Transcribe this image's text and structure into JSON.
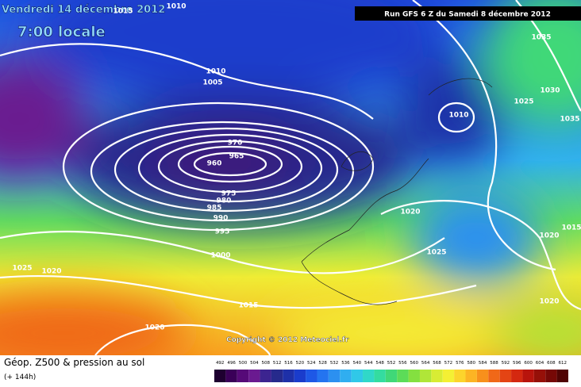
{
  "header": {
    "date": "Vendredi 14 décembre 2012",
    "time": "7:00 locale",
    "run": "Run GFS 6 Z du Samedi 8 décembre 2012"
  },
  "isobar_labels": [
    "1015",
    "1010",
    "1010",
    "1005",
    "970",
    "965",
    "960",
    "975",
    "980",
    "985",
    "990",
    "995",
    "1000",
    "1015",
    "1020",
    "1025",
    "1020",
    "1010",
    "1035",
    "1025",
    "1030",
    "1035",
    "1020",
    "1025",
    "1020",
    "1015",
    "1020"
  ],
  "copyright": "Copyright © 2012 Meteociel.fr",
  "legend": {
    "title": "Géop. Z500 & pression au sol",
    "subtitle": "(+ 144h)",
    "scale": {
      "values": [
        492,
        496,
        500,
        504,
        508,
        512,
        516,
        520,
        524,
        528,
        532,
        536,
        540,
        544,
        548,
        552,
        556,
        560,
        564,
        568,
        572,
        576,
        580,
        584,
        588,
        592,
        596,
        600,
        604,
        608,
        612
      ],
      "colors": [
        "#1e0030",
        "#3a0058",
        "#560a78",
        "#6a1a90",
        "#3c2490",
        "#262a8c",
        "#1e30a8",
        "#1a3ccc",
        "#1e58e6",
        "#2474f0",
        "#2c90f0",
        "#30aef0",
        "#30c8e8",
        "#30d8c8",
        "#34dca0",
        "#40d878",
        "#5cdc58",
        "#84e040",
        "#b0e638",
        "#d8ec34",
        "#f4f034",
        "#fcd42c",
        "#fcb424",
        "#f8901c",
        "#f06818",
        "#e44414",
        "#d42810",
        "#b8140c",
        "#961008",
        "#760806",
        "#500404"
      ]
    }
  }
}
